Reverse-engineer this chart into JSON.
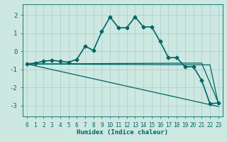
{
  "title": "",
  "xlabel": "Humidex (Indice chaleur)",
  "ylabel": "",
  "bg_color": "#cce8e0",
  "grid_color": "#aacccc",
  "line_color": "#006666",
  "xlim": [
    -0.5,
    23.5
  ],
  "ylim": [
    -3.6,
    2.6
  ],
  "yticks": [
    -3,
    -2,
    -1,
    0,
    1,
    2
  ],
  "xticks": [
    0,
    1,
    2,
    3,
    4,
    5,
    6,
    7,
    8,
    9,
    10,
    11,
    12,
    13,
    14,
    15,
    16,
    17,
    18,
    19,
    20,
    21,
    22,
    23
  ],
  "series_main": {
    "x": [
      0,
      1,
      2,
      3,
      4,
      5,
      6,
      7,
      8,
      9,
      10,
      11,
      12,
      13,
      14,
      15,
      16,
      17,
      18,
      19,
      20,
      21,
      22,
      23
    ],
    "y": [
      -0.7,
      -0.65,
      -0.55,
      -0.5,
      -0.55,
      -0.6,
      -0.45,
      0.28,
      0.05,
      1.1,
      1.9,
      1.3,
      1.3,
      1.9,
      1.35,
      1.35,
      0.55,
      -0.35,
      -0.35,
      -0.85,
      -0.85,
      -1.6,
      -2.9,
      -2.85
    ],
    "marker": "D",
    "markersize": 2.5,
    "linewidth": 1.2
  },
  "series_lines": [
    {
      "x": [
        0,
        23
      ],
      "y": [
        -0.7,
        -3.05
      ],
      "linewidth": 0.9
    },
    {
      "x": [
        0,
        22,
        23
      ],
      "y": [
        -0.7,
        -0.75,
        -2.9
      ],
      "linewidth": 0.9
    },
    {
      "x": [
        0,
        21,
        23
      ],
      "y": [
        -0.7,
        -0.65,
        -2.85
      ],
      "linewidth": 0.9
    }
  ]
}
